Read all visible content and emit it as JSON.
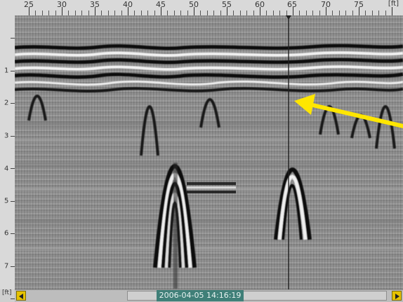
{
  "x_axis": {
    "unit": "[ft]",
    "labels": [
      "25",
      "30",
      "35",
      "40",
      "45",
      "50",
      "55",
      "60",
      "65",
      "70",
      "75"
    ]
  },
  "y_axis": {
    "unit": "[ft]",
    "labels": [
      "1",
      "2",
      "3",
      "4",
      "5",
      "6",
      "7"
    ]
  },
  "status": {
    "timestamp": "2006-04-05  14:16:19"
  },
  "colors": {
    "arrow": "#ffe600",
    "timestamp_bg": "#3f7f78",
    "scroll_button": "#e6c200"
  },
  "icons": {
    "arrow": "yellow-arrow-icon",
    "scroll_left": "triangle-left-icon",
    "scroll_right": "triangle-right-icon"
  }
}
